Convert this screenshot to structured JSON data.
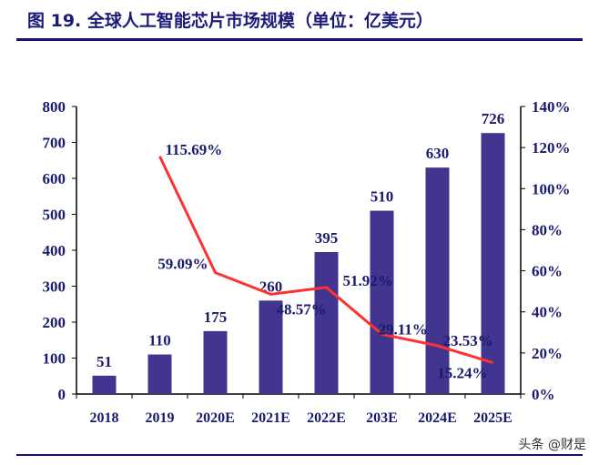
{
  "title": "图 19. 全球人工智能芯片市场规模（单位：亿美元）",
  "watermark": "头条 @财是",
  "chart_data": {
    "type": "bar+line",
    "title": "图 19. 全球人工智能芯片市场规模（单位：亿美元）",
    "categories": [
      "2018",
      "2019",
      "2020E",
      "2021E",
      "2022E",
      "203E",
      "2024E",
      "2025E"
    ],
    "series": [
      {
        "type": "bar",
        "axis": "left",
        "values": [
          51,
          110,
          175,
          260,
          395,
          510,
          630,
          726
        ],
        "labels": [
          "51",
          "110",
          "175",
          "260",
          "395",
          "510",
          "630",
          "726"
        ],
        "color": "#41358f"
      },
      {
        "type": "line",
        "axis": "right",
        "values": [
          null,
          115.69,
          59.09,
          48.57,
          51.92,
          29.11,
          23.53,
          15.24
        ],
        "labels": [
          "",
          "115.69%",
          "59.09%",
          "48.57%",
          "51.92%",
          "29.11%",
          "23.53%",
          "15.24%"
        ],
        "color": "#ff3030"
      }
    ],
    "left_axis": {
      "range": [
        0,
        800
      ],
      "ticks": [
        "0",
        "100",
        "200",
        "300",
        "400",
        "500",
        "600",
        "700",
        "800"
      ]
    },
    "right_axis": {
      "range": [
        0,
        140
      ],
      "ticks": [
        "0%",
        "20%",
        "40%",
        "60%",
        "80%",
        "100%",
        "120%",
        "140%"
      ]
    },
    "grid": false,
    "legend": "none"
  }
}
